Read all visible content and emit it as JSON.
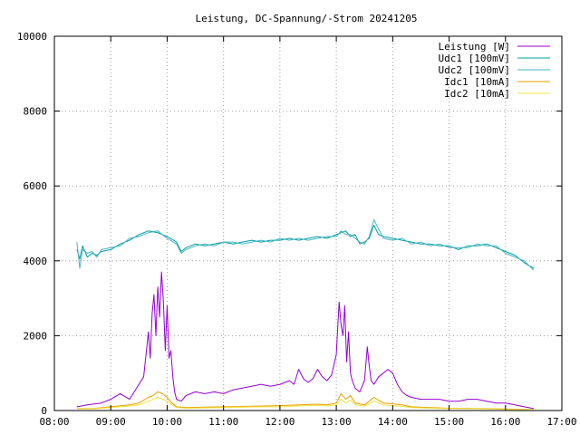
{
  "chart_data": {
    "type": "line",
    "title": "Leistung, DC-Spannung/-Strom 20241205",
    "xlabel": "",
    "ylabel": "",
    "xlim": [
      "08:00",
      "17:00"
    ],
    "ylim": [
      0,
      10000
    ],
    "x_ticks": [
      "08:00",
      "09:00",
      "10:00",
      "11:00",
      "12:00",
      "13:00",
      "14:00",
      "15:00",
      "16:00",
      "17:00"
    ],
    "y_ticks": [
      0,
      2000,
      4000,
      6000,
      8000,
      10000
    ],
    "grid": true,
    "legend_position": "top-right",
    "series": [
      {
        "name": "Leistung [W]",
        "color": "#9400d3",
        "x": [
          "08:24",
          "08:35",
          "08:50",
          "09:00",
          "09:10",
          "09:20",
          "09:25",
          "09:30",
          "09:35",
          "09:38",
          "09:40",
          "09:42",
          "09:44",
          "09:46",
          "09:48",
          "09:50",
          "09:52",
          "09:54",
          "09:56",
          "09:58",
          "10:00",
          "10:02",
          "10:04",
          "10:06",
          "10:08",
          "10:10",
          "10:15",
          "10:20",
          "10:30",
          "10:40",
          "10:50",
          "11:00",
          "11:10",
          "11:20",
          "11:30",
          "11:40",
          "11:50",
          "12:00",
          "12:10",
          "12:15",
          "12:20",
          "12:25",
          "12:30",
          "12:35",
          "12:40",
          "12:45",
          "12:50",
          "12:55",
          "13:00",
          "13:03",
          "13:05",
          "13:07",
          "13:09",
          "13:11",
          "13:13",
          "13:15",
          "13:17",
          "13:20",
          "13:25",
          "13:30",
          "13:33",
          "13:35",
          "13:37",
          "13:40",
          "13:45",
          "13:50",
          "13:55",
          "14:00",
          "14:05",
          "14:10",
          "14:15",
          "14:20",
          "14:30",
          "14:40",
          "14:50",
          "15:00",
          "15:10",
          "15:20",
          "15:30",
          "15:40",
          "15:50",
          "16:00",
          "16:10",
          "16:20",
          "16:30"
        ],
        "values": [
          100,
          150,
          200,
          300,
          450,
          300,
          500,
          700,
          900,
          1600,
          2100,
          1400,
          2600,
          3100,
          2000,
          3300,
          2500,
          3700,
          2900,
          1600,
          2800,
          1400,
          1600,
          900,
          500,
          300,
          250,
          400,
          500,
          450,
          500,
          450,
          550,
          600,
          650,
          700,
          650,
          700,
          800,
          700,
          1100,
          850,
          750,
          850,
          1100,
          900,
          800,
          950,
          1500,
          2900,
          2300,
          2000,
          2800,
          1300,
          2100,
          1000,
          800,
          600,
          500,
          800,
          1700,
          1200,
          800,
          700,
          900,
          1000,
          1100,
          1000,
          700,
          500,
          400,
          350,
          300,
          300,
          300,
          250,
          250,
          300,
          300,
          250,
          200,
          200,
          150,
          100,
          50
        ]
      },
      {
        "name": "Udc1 [100mV]",
        "color": "#009e9e",
        "x": [
          "08:24",
          "08:27",
          "08:30",
          "08:35",
          "08:40",
          "08:45",
          "08:50",
          "09:00",
          "09:10",
          "09:20",
          "09:30",
          "09:40",
          "09:50",
          "10:00",
          "10:10",
          "10:15",
          "10:20",
          "10:30",
          "10:40",
          "10:50",
          "11:00",
          "11:10",
          "11:20",
          "11:30",
          "11:40",
          "11:50",
          "12:00",
          "12:10",
          "12:20",
          "12:30",
          "12:40",
          "12:50",
          "13:00",
          "13:05",
          "13:10",
          "13:15",
          "13:20",
          "13:25",
          "13:30",
          "13:35",
          "13:40",
          "13:45",
          "13:50",
          "14:00",
          "14:10",
          "14:20",
          "14:30",
          "14:40",
          "14:50",
          "15:00",
          "15:10",
          "15:20",
          "15:30",
          "15:40",
          "15:50",
          "16:00",
          "16:10",
          "16:20",
          "16:30"
        ],
        "values": [
          4300,
          4050,
          4400,
          4100,
          4200,
          4150,
          4250,
          4300,
          4450,
          4550,
          4700,
          4800,
          4750,
          4650,
          4500,
          4250,
          4350,
          4450,
          4400,
          4450,
          4500,
          4450,
          4500,
          4550,
          4500,
          4550,
          4550,
          4600,
          4550,
          4600,
          4650,
          4600,
          4700,
          4750,
          4800,
          4650,
          4700,
          4450,
          4500,
          4600,
          4950,
          4700,
          4650,
          4600,
          4550,
          4500,
          4450,
          4450,
          4400,
          4400,
          4300,
          4400,
          4400,
          4450,
          4350,
          4250,
          4150,
          3950,
          3800
        ]
      },
      {
        "name": "Udc2 [100mV]",
        "color": "#45b6c6",
        "x": [
          "08:24",
          "08:27",
          "08:30",
          "08:35",
          "08:40",
          "08:45",
          "08:50",
          "09:00",
          "09:10",
          "09:20",
          "09:30",
          "09:40",
          "09:50",
          "10:00",
          "10:10",
          "10:15",
          "10:20",
          "10:30",
          "10:40",
          "10:50",
          "11:00",
          "11:10",
          "11:20",
          "11:30",
          "11:40",
          "11:50",
          "12:00",
          "12:10",
          "12:20",
          "12:30",
          "12:40",
          "12:50",
          "13:00",
          "13:05",
          "13:10",
          "13:15",
          "13:20",
          "13:25",
          "13:30",
          "13:35",
          "13:40",
          "13:45",
          "13:50",
          "14:00",
          "14:10",
          "14:20",
          "14:30",
          "14:40",
          "14:50",
          "15:00",
          "15:10",
          "15:20",
          "15:30",
          "15:40",
          "15:50",
          "16:00",
          "16:10",
          "16:20",
          "16:30"
        ],
        "values": [
          4500,
          3800,
          4300,
          4200,
          4250,
          4100,
          4300,
          4350,
          4400,
          4600,
          4650,
          4750,
          4800,
          4600,
          4450,
          4200,
          4300,
          4400,
          4450,
          4400,
          4500,
          4500,
          4450,
          4500,
          4550,
          4500,
          4600,
          4550,
          4600,
          4550,
          4600,
          4650,
          4650,
          4800,
          4700,
          4700,
          4600,
          4500,
          4450,
          4650,
          5100,
          4850,
          4600,
          4550,
          4600,
          4450,
          4500,
          4400,
          4450,
          4350,
          4350,
          4350,
          4450,
          4400,
          4400,
          4200,
          4100,
          4000,
          3750
        ]
      },
      {
        "name": "Idc1 [10mA]",
        "color": "#e69f00",
        "x": [
          "08:24",
          "08:40",
          "09:00",
          "09:20",
          "09:30",
          "09:40",
          "09:45",
          "09:50",
          "09:55",
          "10:00",
          "10:05",
          "10:10",
          "10:20",
          "10:40",
          "11:00",
          "11:20",
          "11:40",
          "12:00",
          "12:20",
          "12:30",
          "12:40",
          "12:50",
          "13:00",
          "13:05",
          "13:10",
          "13:15",
          "13:20",
          "13:30",
          "13:40",
          "13:50",
          "14:00",
          "14:10",
          "14:20",
          "14:40",
          "15:00",
          "15:20",
          "15:40",
          "16:00",
          "16:20",
          "16:30"
        ],
        "values": [
          50,
          50,
          100,
          150,
          200,
          350,
          400,
          500,
          450,
          350,
          200,
          100,
          80,
          90,
          100,
          110,
          120,
          130,
          150,
          160,
          170,
          150,
          200,
          450,
          300,
          400,
          200,
          150,
          350,
          200,
          180,
          150,
          100,
          80,
          60,
          60,
          50,
          40,
          30,
          20
        ]
      },
      {
        "name": "Idc2 [10mA]",
        "color": "#f0e442",
        "x": [
          "08:24",
          "08:40",
          "09:00",
          "09:20",
          "09:30",
          "09:40",
          "09:45",
          "09:50",
          "09:55",
          "10:00",
          "10:05",
          "10:10",
          "10:20",
          "10:40",
          "11:00",
          "11:20",
          "11:40",
          "12:00",
          "12:20",
          "12:30",
          "12:40",
          "12:50",
          "13:00",
          "13:05",
          "13:10",
          "13:15",
          "13:20",
          "13:30",
          "13:40",
          "13:50",
          "14:00",
          "14:10",
          "14:20",
          "14:40",
          "15:00",
          "15:20",
          "15:40",
          "16:00",
          "16:20",
          "16:30"
        ],
        "values": [
          40,
          40,
          80,
          120,
          150,
          250,
          300,
          350,
          300,
          250,
          150,
          80,
          60,
          70,
          80,
          90,
          100,
          100,
          120,
          130,
          140,
          120,
          150,
          300,
          200,
          280,
          150,
          120,
          250,
          150,
          130,
          110,
          80,
          60,
          50,
          50,
          40,
          30,
          25,
          15
        ]
      }
    ]
  }
}
